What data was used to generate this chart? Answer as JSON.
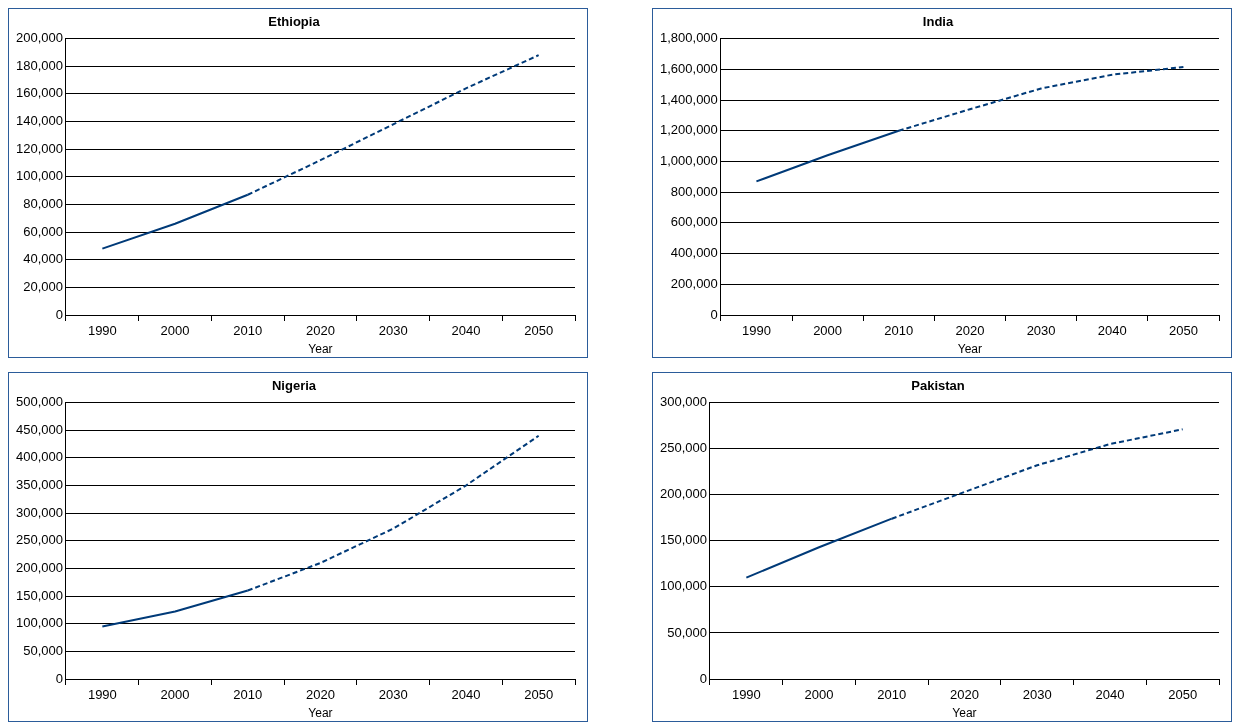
{
  "chart_data": [
    {
      "type": "line",
      "title": "Ethiopia",
      "xlabel": "Year",
      "categories": [
        "1990",
        "2000",
        "2010",
        "2020",
        "2030",
        "2040",
        "2050"
      ],
      "series": [
        {
          "color": "#003a78",
          "line_style": "solid",
          "values": [
            48000,
            66000,
            87000,
            null,
            null,
            null,
            null
          ]
        },
        {
          "color": "#003a78",
          "line_style": "dashed",
          "values": [
            null,
            null,
            87000,
            112000,
            138000,
            164000,
            188000
          ]
        }
      ],
      "ylim": [
        0,
        200000
      ],
      "yticks": [
        {
          "value": 0,
          "label": "0"
        },
        {
          "value": 20000,
          "label": "20,000"
        },
        {
          "value": 40000,
          "label": "40,000"
        },
        {
          "value": 60000,
          "label": "60,000"
        },
        {
          "value": 80000,
          "label": "80,000"
        },
        {
          "value": 100000,
          "label": "100,000"
        },
        {
          "value": 120000,
          "label": "120,000"
        },
        {
          "value": 140000,
          "label": "140,000"
        },
        {
          "value": 160000,
          "label": "160,000"
        },
        {
          "value": 180000,
          "label": "180,000"
        },
        {
          "value": 200000,
          "label": "200,000"
        }
      ],
      "grid": "y",
      "legend": false,
      "marker": "none"
    },
    {
      "type": "line",
      "title": "India",
      "xlabel": "Year",
      "categories": [
        "1990",
        "2000",
        "2010",
        "2020",
        "2030",
        "2040",
        "2050"
      ],
      "series": [
        {
          "color": "#003a78",
          "line_style": "solid",
          "values": [
            870000,
            1040000,
            1200000,
            null,
            null,
            null,
            null
          ]
        },
        {
          "color": "#003a78",
          "line_style": "dashed",
          "values": [
            null,
            null,
            1200000,
            1340000,
            1475000,
            1565000,
            1615000
          ]
        }
      ],
      "ylim": [
        0,
        1800000
      ],
      "yticks": [
        {
          "value": 0,
          "label": "0"
        },
        {
          "value": 200000,
          "label": "200,000"
        },
        {
          "value": 400000,
          "label": "400,000"
        },
        {
          "value": 600000,
          "label": "600,000"
        },
        {
          "value": 800000,
          "label": "800,000"
        },
        {
          "value": 1000000,
          "label": "1,000,000"
        },
        {
          "value": 1200000,
          "label": "1,200,000"
        },
        {
          "value": 1400000,
          "label": "1,400,000"
        },
        {
          "value": 1600000,
          "label": "1,600,000"
        },
        {
          "value": 1800000,
          "label": "1,800,000"
        }
      ],
      "grid": "y",
      "legend": false,
      "marker": "none"
    },
    {
      "type": "line",
      "title": "Nigeria",
      "xlabel": "Year",
      "categories": [
        "1990",
        "2000",
        "2010",
        "2020",
        "2030",
        "2040",
        "2050"
      ],
      "series": [
        {
          "color": "#003a78",
          "line_style": "solid",
          "values": [
            95000,
            122000,
            160000,
            null,
            null,
            null,
            null
          ]
        },
        {
          "color": "#003a78",
          "line_style": "dashed",
          "values": [
            null,
            null,
            160000,
            210000,
            272000,
            350000,
            440000
          ]
        }
      ],
      "ylim": [
        0,
        500000
      ],
      "yticks": [
        {
          "value": 0,
          "label": "0"
        },
        {
          "value": 50000,
          "label": "50,000"
        },
        {
          "value": 100000,
          "label": "100,000"
        },
        {
          "value": 150000,
          "label": "150,000"
        },
        {
          "value": 200000,
          "label": "200,000"
        },
        {
          "value": 250000,
          "label": "250,000"
        },
        {
          "value": 300000,
          "label": "300,000"
        },
        {
          "value": 350000,
          "label": "350,000"
        },
        {
          "value": 400000,
          "label": "400,000"
        },
        {
          "value": 450000,
          "label": "450,000"
        },
        {
          "value": 500000,
          "label": "500,000"
        }
      ],
      "grid": "y",
      "legend": false,
      "marker": "none"
    },
    {
      "type": "line",
      "title": "Pakistan",
      "xlabel": "Year",
      "categories": [
        "1990",
        "2000",
        "2010",
        "2020",
        "2030",
        "2040",
        "2050"
      ],
      "series": [
        {
          "color": "#003a78",
          "line_style": "solid",
          "values": [
            110000,
            143000,
            174000,
            null,
            null,
            null,
            null
          ]
        },
        {
          "color": "#003a78",
          "line_style": "dashed",
          "values": [
            null,
            null,
            174000,
            203000,
            232000,
            255000,
            271000
          ]
        }
      ],
      "ylim": [
        0,
        300000
      ],
      "yticks": [
        {
          "value": 0,
          "label": "0"
        },
        {
          "value": 50000,
          "label": "50,000"
        },
        {
          "value": 100000,
          "label": "100,000"
        },
        {
          "value": 150000,
          "label": "150,000"
        },
        {
          "value": 200000,
          "label": "200,000"
        },
        {
          "value": 250000,
          "label": "250,000"
        },
        {
          "value": 300000,
          "label": "300,000"
        }
      ],
      "grid": "y",
      "legend": false,
      "marker": "none"
    }
  ]
}
